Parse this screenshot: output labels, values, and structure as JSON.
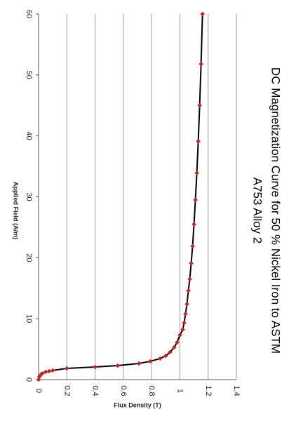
{
  "chart_data": {
    "type": "line",
    "title": [
      "DC Magnetization Curve for 50 % Nickel Iron to ASTM",
      "A753 Alloy 2"
    ],
    "x_label": "Flux Density (T)",
    "y_label": "Applied Field (A/m)",
    "x": [
      0,
      0.005,
      0.015,
      0.025,
      0.05,
      0.074,
      0.1,
      0.2,
      0.4,
      0.56,
      0.71,
      0.79,
      0.86,
      0.9,
      0.93,
      0.96,
      0.98,
      1.0,
      1.02,
      1.03,
      1.04,
      1.05,
      1.06,
      1.07,
      1.08,
      1.09,
      1.1,
      1.11,
      1.12,
      1.13,
      1.14,
      1.15,
      1.16
    ],
    "series": [
      {
        "name": "Applied Field",
        "color": "#cc1f1f",
        "line_color": "#000000",
        "values": [
          0,
          0.46,
          0.8,
          1.0,
          1.27,
          1.38,
          1.5,
          1.84,
          2.07,
          2.3,
          2.65,
          3.0,
          3.46,
          3.9,
          4.5,
          5.3,
          6.1,
          7.3,
          8.2,
          9.3,
          10.8,
          12.4,
          14.6,
          16.5,
          19.1,
          21.9,
          25.5,
          29.5,
          33.9,
          39.1,
          45.0,
          51.8,
          60.0
        ]
      }
    ],
    "xlim": [
      0,
      1.4
    ],
    "xticks": [
      0,
      0.2,
      0.4,
      0.6,
      0.8,
      1,
      1.2,
      1.4
    ],
    "ylim": [
      0,
      60
    ],
    "yticks": [
      0,
      10,
      20,
      30,
      40,
      50,
      60
    ],
    "grid": true
  }
}
